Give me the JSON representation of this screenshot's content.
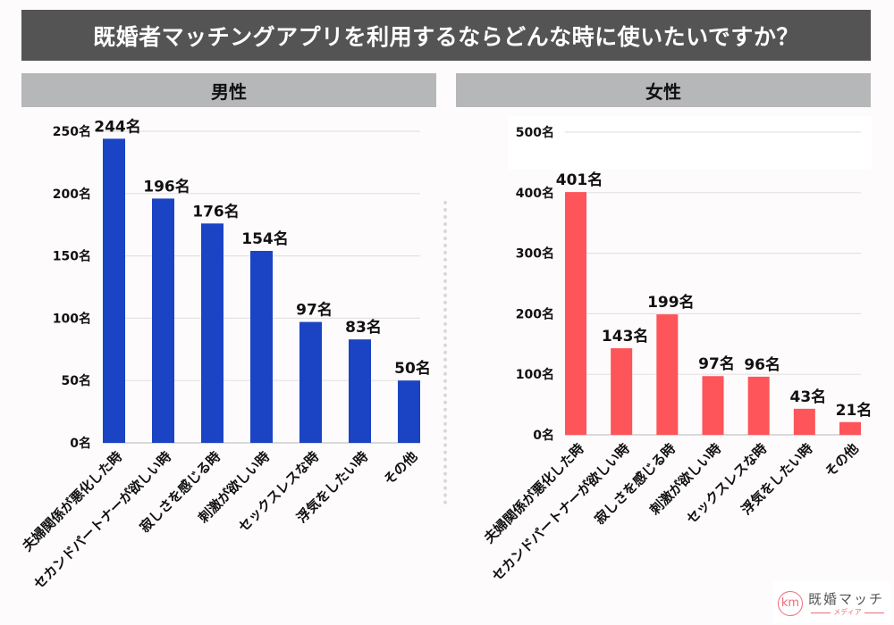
{
  "header": {
    "title": "既婚者マッチングアプリを利用するならどんな時に使いたいですか？"
  },
  "logo": {
    "mark": "km",
    "name": "既婚マッチ",
    "sub": "メディア"
  },
  "chart_data": [
    {
      "type": "bar",
      "title": "男性",
      "color": "#1a44c4",
      "unit": "名",
      "categories": [
        "夫婦関係が悪化した時",
        "セカンドパートナーが欲しい時",
        "寂しさを感じる時",
        "刺激が欲しい時",
        "セックスレスな時",
        "浮気をしたい時",
        "その他"
      ],
      "values": [
        244,
        196,
        176,
        154,
        97,
        83,
        50
      ],
      "value_labels": [
        "244名",
        "196名",
        "176名",
        "154名",
        "97名",
        "83名",
        "50名"
      ],
      "ylim": [
        0,
        250
      ],
      "yticks": [
        0,
        50,
        100,
        150,
        200,
        250
      ],
      "ytick_labels": [
        "0名",
        "50名",
        "100名",
        "150名",
        "200名",
        "250名"
      ],
      "grid": true,
      "legend": "none"
    },
    {
      "type": "bar",
      "title": "女性",
      "color": "#fd5559",
      "unit": "名",
      "categories": [
        "夫婦関係が悪化した時",
        "セカンドパートナーが欲しい時",
        "寂しさを感じる時",
        "刺激が欲しい時",
        "セックスレスな時",
        "浮気をしたい時",
        "その他"
      ],
      "values": [
        401,
        143,
        199,
        97,
        96,
        43,
        21
      ],
      "value_labels": [
        "401名",
        "143名",
        "199名",
        "97名",
        "96名",
        "43名",
        "21名"
      ],
      "ylim": [
        0,
        500
      ],
      "yticks": [
        0,
        100,
        200,
        300,
        400,
        500
      ],
      "ytick_labels": [
        "0名",
        "100名",
        "200名",
        "300名",
        "400名",
        "500名"
      ],
      "grid": true,
      "legend": "none"
    }
  ]
}
